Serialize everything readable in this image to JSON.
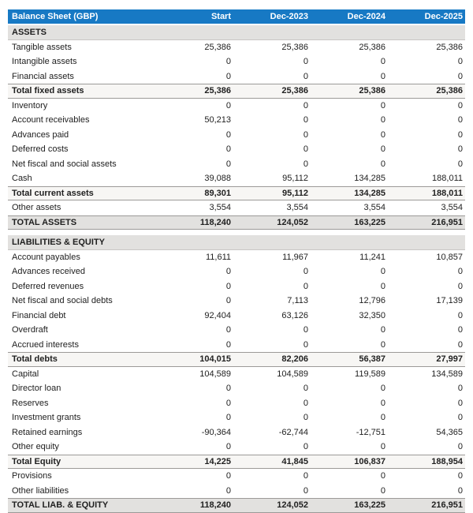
{
  "colors": {
    "header_bg": "#1779c4",
    "header_text": "#ffffff",
    "section_bg": "#e2e1df",
    "subtotal_bg": "#f7f6f4",
    "grandtotal_bg": "#e2e1df",
    "line": "#9c9a98",
    "section_line": "#c9c7c5",
    "text": "#212121"
  },
  "chart_data": {
    "type": "table",
    "title": "Balance Sheet (GBP)",
    "columns": [
      "Start",
      "Dec-2023",
      "Dec-2024",
      "Dec-2025"
    ],
    "rows": [
      {
        "type": "section",
        "label": "ASSETS",
        "values": [
          "",
          "",
          "",
          ""
        ]
      },
      {
        "type": "normal",
        "label": "Tangible assets",
        "values": [
          "25,386",
          "25,386",
          "25,386",
          "25,386"
        ]
      },
      {
        "type": "normal",
        "label": "Intangible assets",
        "values": [
          "0",
          "0",
          "0",
          "0"
        ]
      },
      {
        "type": "normal",
        "label": "Financial assets",
        "values": [
          "0",
          "0",
          "0",
          "0"
        ]
      },
      {
        "type": "subtotal",
        "label": "Total fixed assets",
        "values": [
          "25,386",
          "25,386",
          "25,386",
          "25,386"
        ]
      },
      {
        "type": "normal",
        "label": "Inventory",
        "values": [
          "0",
          "0",
          "0",
          "0"
        ]
      },
      {
        "type": "normal",
        "label": "Account receivables",
        "values": [
          "50,213",
          "0",
          "0",
          "0"
        ]
      },
      {
        "type": "normal",
        "label": "Advances paid",
        "values": [
          "0",
          "0",
          "0",
          "0"
        ]
      },
      {
        "type": "normal",
        "label": "Deferred costs",
        "values": [
          "0",
          "0",
          "0",
          "0"
        ]
      },
      {
        "type": "normal",
        "label": "Net fiscal and social assets",
        "values": [
          "0",
          "0",
          "0",
          "0"
        ]
      },
      {
        "type": "normal",
        "label": "Cash",
        "values": [
          "39,088",
          "95,112",
          "134,285",
          "188,011"
        ]
      },
      {
        "type": "subtotal",
        "label": "Total current assets",
        "values": [
          "89,301",
          "95,112",
          "134,285",
          "188,011"
        ]
      },
      {
        "type": "normal",
        "label": "Other assets",
        "values": [
          "3,554",
          "3,554",
          "3,554",
          "3,554"
        ]
      },
      {
        "type": "grandtotal",
        "label": "TOTAL ASSETS",
        "values": [
          "118,240",
          "124,052",
          "163,225",
          "216,951"
        ]
      },
      {
        "type": "spacer",
        "label": "",
        "values": [
          "",
          "",
          "",
          ""
        ]
      },
      {
        "type": "section",
        "label": "LIABILITIES & EQUITY",
        "values": [
          "",
          "",
          "",
          ""
        ]
      },
      {
        "type": "normal",
        "label": "Account payables",
        "values": [
          "11,611",
          "11,967",
          "11,241",
          "10,857"
        ]
      },
      {
        "type": "normal",
        "label": "Advances received",
        "values": [
          "0",
          "0",
          "0",
          "0"
        ]
      },
      {
        "type": "normal",
        "label": "Deferred revenues",
        "values": [
          "0",
          "0",
          "0",
          "0"
        ]
      },
      {
        "type": "normal",
        "label": "Net fiscal and social debts",
        "values": [
          "0",
          "7,113",
          "12,796",
          "17,139"
        ]
      },
      {
        "type": "normal",
        "label": "Financial debt",
        "values": [
          "92,404",
          "63,126",
          "32,350",
          "0"
        ]
      },
      {
        "type": "normal",
        "label": "Overdraft",
        "values": [
          "0",
          "0",
          "0",
          "0"
        ]
      },
      {
        "type": "normal",
        "label": "Accrued interests",
        "values": [
          "0",
          "0",
          "0",
          "0"
        ]
      },
      {
        "type": "subtotal",
        "label": "Total debts",
        "values": [
          "104,015",
          "82,206",
          "56,387",
          "27,997"
        ]
      },
      {
        "type": "normal",
        "label": "Capital",
        "values": [
          "104,589",
          "104,589",
          "119,589",
          "134,589"
        ]
      },
      {
        "type": "normal",
        "label": "Director loan",
        "values": [
          "0",
          "0",
          "0",
          "0"
        ]
      },
      {
        "type": "normal",
        "label": "Reserves",
        "values": [
          "0",
          "0",
          "0",
          "0"
        ]
      },
      {
        "type": "normal",
        "label": "Investment grants",
        "values": [
          "0",
          "0",
          "0",
          "0"
        ]
      },
      {
        "type": "normal",
        "label": "Retained earnings",
        "values": [
          "-90,364",
          "-62,744",
          "-12,751",
          "54,365"
        ]
      },
      {
        "type": "normal",
        "label": "Other equity",
        "values": [
          "0",
          "0",
          "0",
          "0"
        ]
      },
      {
        "type": "subtotal",
        "label": "Total Equity",
        "values": [
          "14,225",
          "41,845",
          "106,837",
          "188,954"
        ]
      },
      {
        "type": "normal",
        "label": "Provisions",
        "values": [
          "0",
          "0",
          "0",
          "0"
        ]
      },
      {
        "type": "normal",
        "label": "Other liabilities",
        "values": [
          "0",
          "0",
          "0",
          "0"
        ]
      },
      {
        "type": "grandtotal",
        "label": "TOTAL LIAB. & EQUITY",
        "values": [
          "118,240",
          "124,052",
          "163,225",
          "216,951"
        ]
      }
    ]
  }
}
